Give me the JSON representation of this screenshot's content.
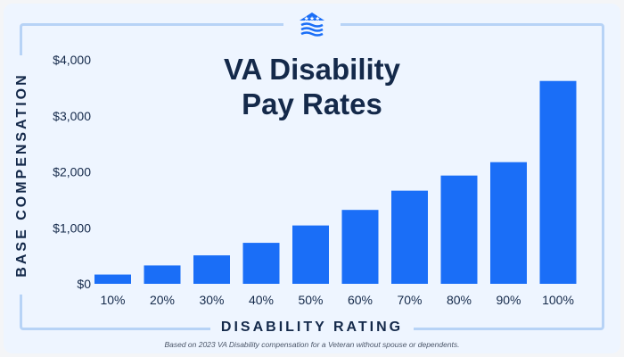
{
  "chart_data": {
    "type": "bar",
    "title_lines": [
      "VA Disability",
      "Pay Rates"
    ],
    "xlabel": "DISABILITY RATING",
    "ylabel": "BASE COMPENSATION",
    "categories": [
      "10%",
      "20%",
      "30%",
      "40%",
      "50%",
      "60%",
      "70%",
      "80%",
      "90%",
      "100%"
    ],
    "values": [
      165.92,
      327.99,
      508.05,
      731.86,
      1041.82,
      1319.65,
      1663.06,
      1933.15,
      2172.39,
      3621.95
    ],
    "ylim": [
      0,
      4000
    ],
    "yticks": [
      0,
      1000,
      2000,
      3000,
      4000
    ],
    "ytick_labels": [
      "$0",
      "$1,000",
      "$2,000",
      "$3,000",
      "$4,000"
    ],
    "bar_color": "#1a6ef7",
    "grid": false,
    "note": "Based on 2023 VA Disability compensation for a Veteran without spouse or dependents."
  },
  "colors": {
    "background": "#eef5ff",
    "frame": "#b7d3f6",
    "text": "#14294a"
  },
  "logo_icon": "house-flag-icon"
}
